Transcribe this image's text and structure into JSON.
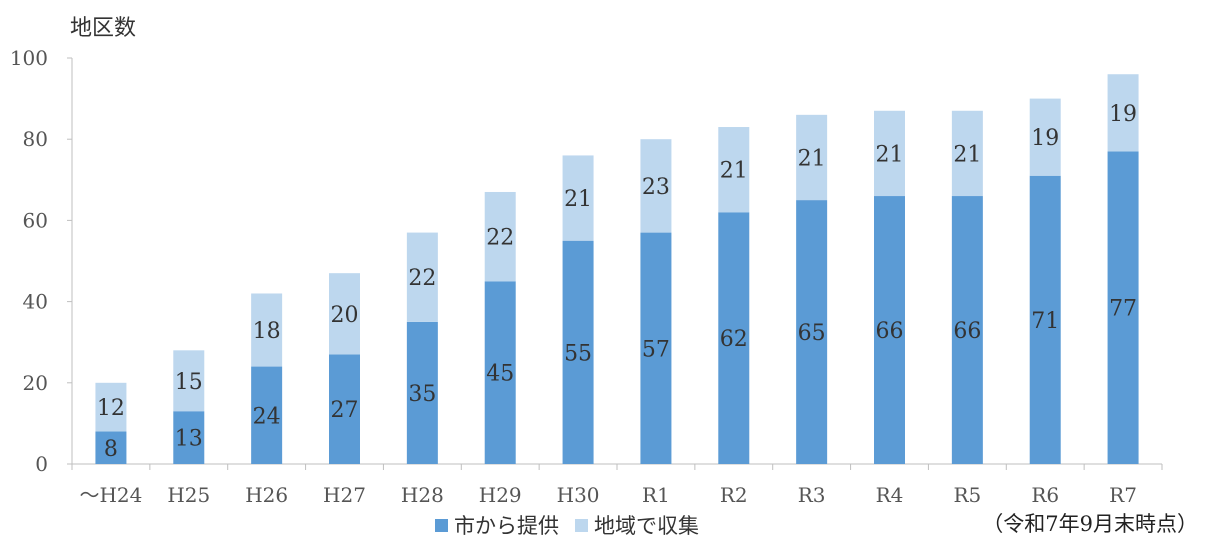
{
  "chart_data": {
    "type": "bar",
    "stacked": true,
    "ylabel": "地区数",
    "ylim": [
      0,
      100
    ],
    "yticks": [
      0,
      20,
      40,
      60,
      80,
      100
    ],
    "categories": [
      "～H24",
      "H25",
      "H26",
      "H27",
      "H28",
      "H29",
      "H30",
      "R1",
      "R2",
      "R3",
      "R4",
      "R5",
      "R6",
      "R7"
    ],
    "series": [
      {
        "name": "市から提供",
        "color": "#5b9bd5",
        "values": [
          8,
          13,
          24,
          27,
          35,
          45,
          55,
          57,
          62,
          65,
          66,
          66,
          71,
          77
        ]
      },
      {
        "name": "地域で収集",
        "color": "#bdd7ee",
        "values": [
          12,
          15,
          18,
          20,
          22,
          22,
          21,
          23,
          21,
          21,
          21,
          21,
          19,
          19
        ]
      }
    ],
    "legend_position": "bottom",
    "grid": false,
    "note": "（令和7年9月末時点）"
  }
}
